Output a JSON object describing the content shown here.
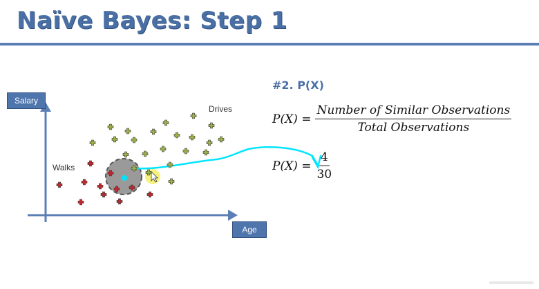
{
  "header": {
    "title": "Naïve Bayes: Step 1"
  },
  "axes": {
    "y_label": "Salary",
    "x_label": "Age"
  },
  "groups": {
    "walks": "Walks",
    "drives": "Drives"
  },
  "panel": {
    "heading": "#2. P(X)",
    "formula_lhs": "P(X) =",
    "numerator": "Number of Similar Observations",
    "denominator": "Total Observations",
    "value_lhs": "P(X) =",
    "value_numerator": "4",
    "value_denominator": "30"
  },
  "colors": {
    "title": "#4a6fa5",
    "axis": "#5b7fb5",
    "walks_marker": "#c0282d",
    "drives_marker": "#9ab14a",
    "circle_fill": "#9a9a9a",
    "annotation": "#00e5ff",
    "pointer_highlight": "#f3ef6a"
  },
  "icons": {
    "walks_marker": "red-plus-icon",
    "drives_marker": "green-plus-icon",
    "new_point": "cyan-dot-icon"
  }
}
